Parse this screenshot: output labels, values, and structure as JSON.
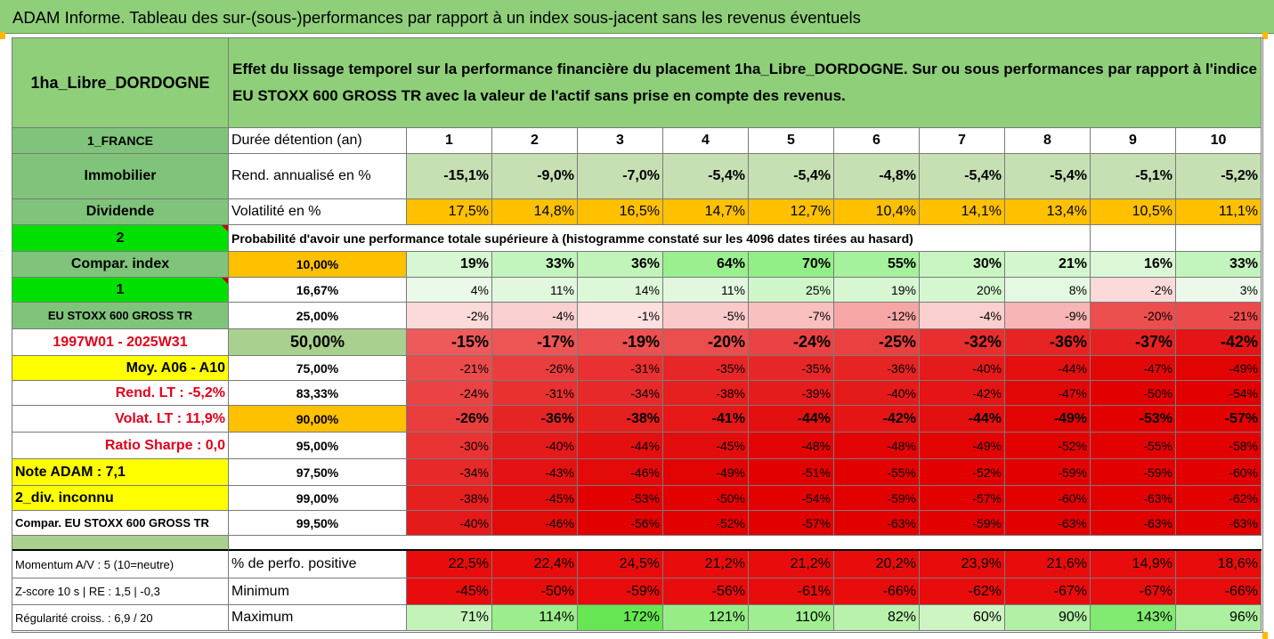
{
  "title": "ADAM Informe. Tableau des sur-(sous-)performances par rapport à un index sous-jacent sans les revenus éventuels",
  "header": {
    "asset_name": "1ha_Libre_DORDOGNE",
    "description": "Effet du lissage temporel sur la performance financière du placement 1ha_Libre_DORDOGNE. Sur ou sous performances par rapport à l'indice EU STOXX 600 GROSS TR avec la valeur de l'actif sans prise en compte des revenus."
  },
  "left_labels": {
    "country": "1_FRANCE",
    "category": "Immobilier",
    "income_type": "Dividende",
    "green_2": "2",
    "compar_index": "Compar. index",
    "green_1": "1",
    "index_name": "EU STOXX 600 GROSS TR",
    "period": "1997W01 - 2025W31",
    "moy": "Moy. A06 - A10",
    "rend_lt": "Rend. LT :   -5,2%",
    "volat_lt": "Volat. LT :   11,9%",
    "sharpe": "Ratio Sharpe :    0,0",
    "note": "Note ADAM : 7,1",
    "div": "2_div. inconnu",
    "compar_full": "Compar. EU STOXX 600 GROSS TR",
    "momentum": "Momentum A/V : 5 (10=neutre)",
    "zscore": "Z-score 10 s  | RE : 1,5  | -0,3",
    "regularite": "Régularité croiss. : 6,9 / 20"
  },
  "row_labels": {
    "duree": "Durée détention (an)",
    "rend": "Rend. annualisé en %",
    "volat": "Volatilité en %",
    "proba": "Probabilité d'avoir une performance totale supérieure à (histogramme constaté sur les 4096 dates tirées au hasard)",
    "pct_positive": "% de perfo. positive",
    "minimum": "Minimum",
    "maximum": "Maximum"
  },
  "years": [
    "1",
    "2",
    "3",
    "4",
    "5",
    "6",
    "7",
    "8",
    "9",
    "10"
  ],
  "rend_values": [
    "-15,1%",
    "-9,0%",
    "-7,0%",
    "-5,4%",
    "-5,4%",
    "-4,8%",
    "-5,4%",
    "-5,4%",
    "-5,1%",
    "-5,2%"
  ],
  "volat_values": [
    "17,5%",
    "14,8%",
    "16,5%",
    "14,7%",
    "12,7%",
    "10,4%",
    "14,1%",
    "13,4%",
    "10,5%",
    "11,1%"
  ],
  "percentile_rows": [
    {
      "threshold": "10,00%",
      "values": [
        "19%",
        "33%",
        "36%",
        "64%",
        "70%",
        "55%",
        "30%",
        "21%",
        "16%",
        "33%"
      ]
    },
    {
      "threshold": "16,67%",
      "values": [
        "4%",
        "11%",
        "14%",
        "11%",
        "25%",
        "19%",
        "20%",
        "8%",
        "-2%",
        "3%"
      ]
    },
    {
      "threshold": "25,00%",
      "values": [
        "-2%",
        "-4%",
        "-1%",
        "-5%",
        "-7%",
        "-12%",
        "-4%",
        "-9%",
        "-20%",
        "-21%"
      ]
    },
    {
      "threshold": "50,00%",
      "values": [
        "-15%",
        "-17%",
        "-19%",
        "-20%",
        "-24%",
        "-25%",
        "-32%",
        "-36%",
        "-37%",
        "-42%"
      ]
    },
    {
      "threshold": "75,00%",
      "values": [
        "-21%",
        "-26%",
        "-31%",
        "-35%",
        "-35%",
        "-36%",
        "-40%",
        "-44%",
        "-47%",
        "-49%"
      ]
    },
    {
      "threshold": "83,33%",
      "values": [
        "-24%",
        "-31%",
        "-34%",
        "-38%",
        "-39%",
        "-40%",
        "-42%",
        "-47%",
        "-50%",
        "-54%"
      ]
    },
    {
      "threshold": "90,00%",
      "values": [
        "-26%",
        "-36%",
        "-38%",
        "-41%",
        "-44%",
        "-42%",
        "-44%",
        "-49%",
        "-53%",
        "-57%"
      ]
    },
    {
      "threshold": "95,00%",
      "values": [
        "-30%",
        "-40%",
        "-44%",
        "-45%",
        "-48%",
        "-48%",
        "-49%",
        "-52%",
        "-55%",
        "-58%"
      ]
    },
    {
      "threshold": "97,50%",
      "values": [
        "-34%",
        "-43%",
        "-46%",
        "-49%",
        "-51%",
        "-55%",
        "-52%",
        "-59%",
        "-59%",
        "-60%"
      ]
    },
    {
      "threshold": "99,00%",
      "values": [
        "-38%",
        "-45%",
        "-53%",
        "-50%",
        "-54%",
        "-59%",
        "-57%",
        "-60%",
        "-63%",
        "-62%"
      ]
    },
    {
      "threshold": "99,50%",
      "values": [
        "-40%",
        "-46%",
        "-56%",
        "-52%",
        "-57%",
        "-63%",
        "-59%",
        "-63%",
        "-63%",
        "-63%"
      ]
    }
  ],
  "pct_positive_values": [
    "22,5%",
    "22,4%",
    "24,5%",
    "21,2%",
    "21,2%",
    "20,2%",
    "23,9%",
    "21,6%",
    "14,9%",
    "18,6%"
  ],
  "minimum_values": [
    "-45%",
    "-50%",
    "-59%",
    "-56%",
    "-61%",
    "-66%",
    "-62%",
    "-67%",
    "-67%",
    "-66%"
  ],
  "maximum_values": [
    "71%",
    "114%",
    "172%",
    "121%",
    "110%",
    "82%",
    "60%",
    "90%",
    "143%",
    "96%"
  ],
  "colors": {
    "header_green": "#8fcf7a",
    "label_green": "#7fc47a",
    "bright_green": "#00e000",
    "yellow": "#ffff00",
    "orange": "#ffc000",
    "rend_green": "#c6e0b4",
    "median_green": "#a9d08e"
  }
}
